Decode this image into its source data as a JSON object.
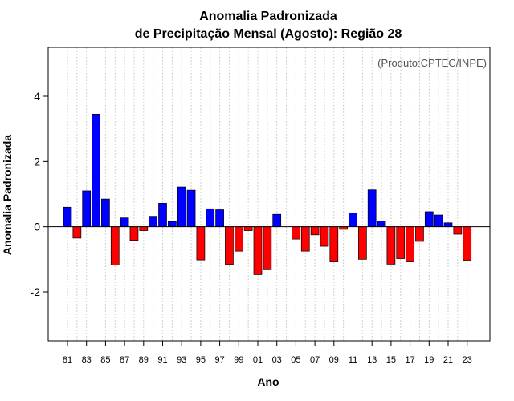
{
  "chart_data": {
    "type": "bar",
    "title": "Anomalia Padronizada",
    "subtitle": "de Precipitação Mensal (Agosto): Região 28",
    "xlabel": "Ano",
    "ylabel": "Anomalia Padronizada",
    "annotation": "(Produto:CPTEC/INPE)",
    "ylim": [
      -3.5,
      5.5
    ],
    "yticks": [
      -2,
      0,
      2,
      4
    ],
    "yticklabels": [
      "-2",
      "0",
      "2",
      "4"
    ],
    "grid": "vertical dotted",
    "categories": [
      "1981",
      "1982",
      "1983",
      "1984",
      "1985",
      "1986",
      "1987",
      "1988",
      "1989",
      "1990",
      "1991",
      "1992",
      "1993",
      "1994",
      "1995",
      "1996",
      "1997",
      "1998",
      "1999",
      "2000",
      "2001",
      "2002",
      "2003",
      "2004",
      "2005",
      "2006",
      "2007",
      "2008",
      "2009",
      "2010",
      "2011",
      "2012",
      "2013",
      "2014",
      "2015",
      "2016",
      "2017",
      "2018",
      "2019",
      "2020",
      "2021",
      "2022",
      "2023"
    ],
    "xticklabels": [
      "81",
      "83",
      "85",
      "87",
      "89",
      "91",
      "93",
      "95",
      "97",
      "99",
      "01",
      "03",
      "05",
      "07",
      "09",
      "11",
      "13",
      "15",
      "17",
      "19",
      "21",
      "23"
    ],
    "values": [
      0.6,
      -0.35,
      1.1,
      3.45,
      0.85,
      -1.18,
      0.27,
      -0.42,
      -0.12,
      0.32,
      0.72,
      0.16,
      1.22,
      1.12,
      -1.02,
      0.55,
      0.52,
      -1.16,
      -0.75,
      -0.12,
      -1.47,
      -1.32,
      0.38,
      0.0,
      -0.38,
      -0.75,
      -0.25,
      -0.6,
      -1.08,
      -0.08,
      0.42,
      -1.0,
      1.13,
      0.18,
      -1.15,
      -0.98,
      -1.08,
      -0.45,
      0.46,
      0.36,
      0.12,
      -0.23,
      -1.03
    ],
    "colors": {
      "positive": "#0000ff",
      "negative": "#ff0000",
      "border": "#000000"
    }
  }
}
